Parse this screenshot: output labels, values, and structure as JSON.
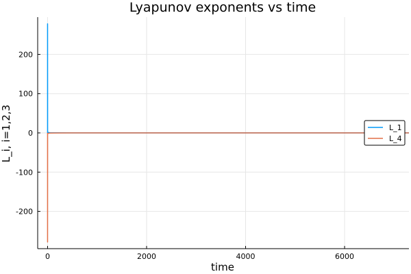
{
  "chart_data": {
    "type": "line",
    "title": "Lyapunov exponents vs time",
    "xlabel": "time",
    "ylabel": "L_i, i=1,2,3",
    "xlim": [
      -200,
      7300
    ],
    "ylim": [
      -295,
      295
    ],
    "xticks": [
      0,
      2000,
      4000,
      6000
    ],
    "xtick_labels": [
      "0",
      "2000",
      "4000",
      "6000"
    ],
    "yticks": [
      -200,
      -100,
      0,
      100,
      200
    ],
    "ytick_labels": [
      "-200",
      "-100",
      "0",
      "100",
      "200"
    ],
    "grid": true,
    "legend_position": "right",
    "series": [
      {
        "name": "L_1",
        "color": "#009af9",
        "x": [
          0,
          0,
          1,
          3,
          10,
          50,
          200,
          500,
          1000,
          3000,
          6000,
          7300
        ],
        "y": [
          0,
          278,
          5,
          2,
          1,
          0.5,
          0.2,
          0.1,
          0.05,
          0.02,
          0.01,
          0.01
        ]
      },
      {
        "name": "L_4",
        "color": "#e26f46",
        "x": [
          0,
          0,
          1,
          3,
          10,
          50,
          200,
          500,
          1000,
          3000,
          6000,
          7300
        ],
        "y": [
          0,
          -278,
          -5,
          -2,
          -1,
          -0.5,
          -0.2,
          -0.1,
          -0.05,
          -0.02,
          -0.01,
          -0.01
        ]
      }
    ]
  }
}
